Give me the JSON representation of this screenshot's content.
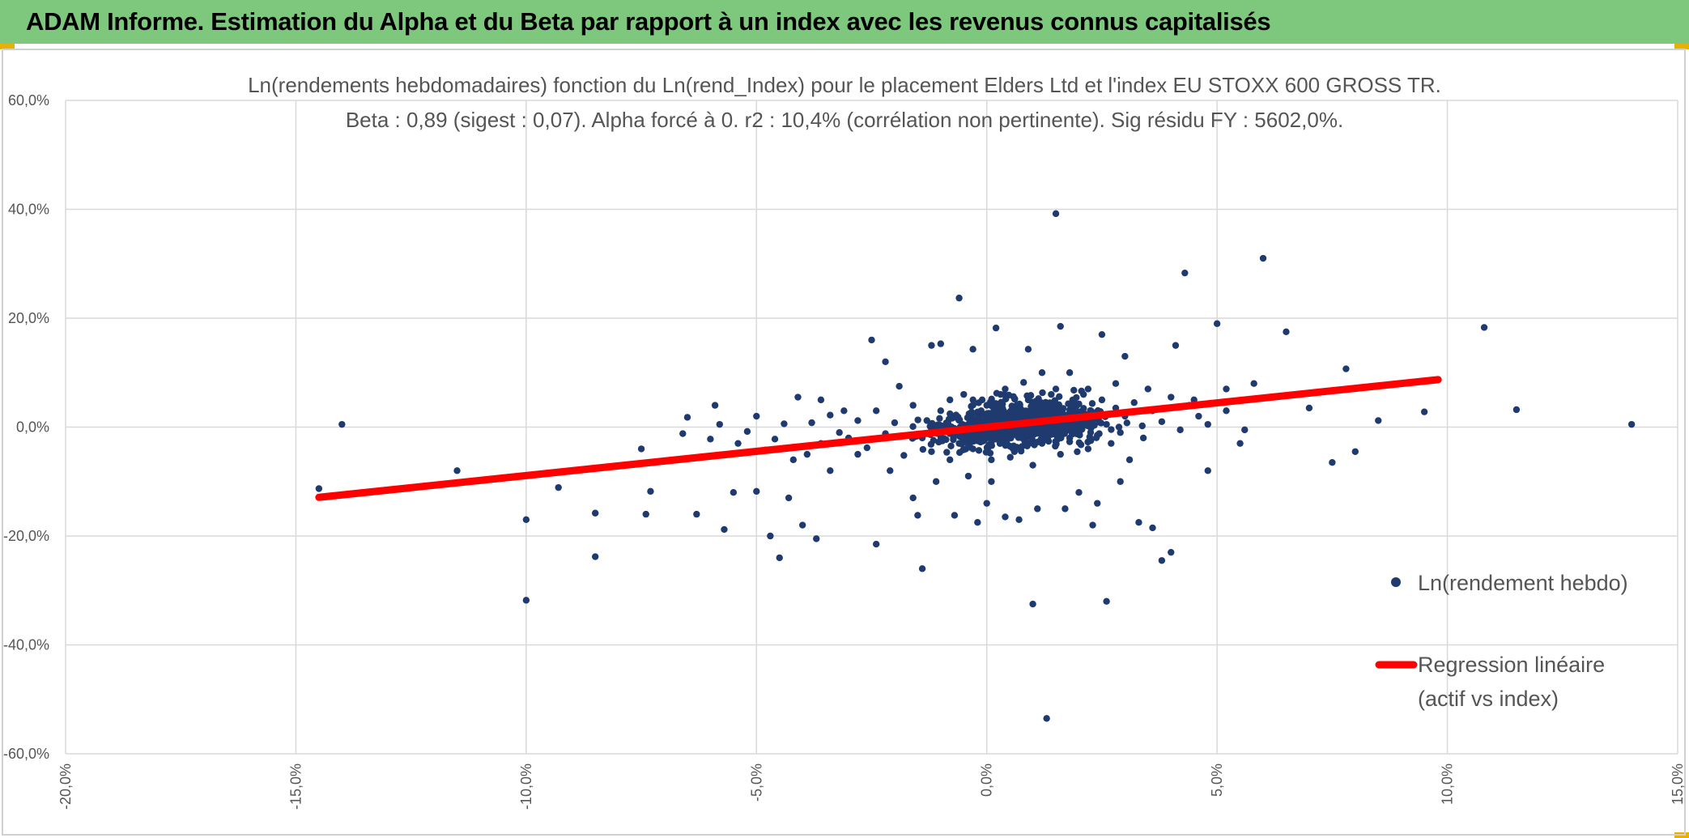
{
  "header": {
    "title": "ADAM Informe. Estimation du Alpha et du Beta par rapport à un index avec les revenus connus capitalisés"
  },
  "colors": {
    "banner": "#7dc87d",
    "points": "#1f3a6e",
    "regression": "#ff0000",
    "grid": "#d9d9d9"
  },
  "chart_data": {
    "type": "scatter",
    "title": "Ln(rendements hebdomadaires) fonction du Ln(rend_Index) pour le placement Elders Ltd et l'index EU STOXX 600 GROSS TR.",
    "subtitle": "Beta : 0,89 (sigest : 0,07). Alpha forcé à 0. r2 : 10,4% (corrélation non pertinente). Sig résidu FY : 5602,0%.",
    "xlim": [
      -0.2,
      0.15
    ],
    "ylim": [
      -0.6,
      0.6
    ],
    "x_ticks": [
      -0.2,
      -0.15,
      -0.1,
      -0.05,
      0.0,
      0.05,
      0.1,
      0.15
    ],
    "x_tick_labels": [
      "-20,0%",
      "-15,0%",
      "-10,0%",
      "-5,0%",
      "0,0%",
      "5,0%",
      "10,0%",
      "15,0%"
    ],
    "y_ticks": [
      0.6,
      0.4,
      0.2,
      0.0,
      -0.2,
      -0.4,
      -0.6
    ],
    "y_tick_labels": [
      "60,0%",
      "40,0%",
      "20,0%",
      "0,0%",
      "-20,0%",
      "-40,0%",
      "-60,0%"
    ],
    "legend_position": "right",
    "series": [
      {
        "name": "Ln(rendement hebdo)",
        "kind": "scatter",
        "points": [
          [
            -0.145,
            -0.113
          ],
          [
            -0.14,
            0.005
          ],
          [
            -0.115,
            -0.08
          ],
          [
            -0.1,
            -0.17
          ],
          [
            -0.1,
            -0.318
          ],
          [
            -0.093,
            -0.111
          ],
          [
            -0.085,
            -0.158
          ],
          [
            -0.085,
            -0.238
          ],
          [
            -0.075,
            -0.04
          ],
          [
            -0.074,
            -0.16
          ],
          [
            -0.073,
            -0.118
          ],
          [
            -0.065,
            0.018
          ],
          [
            -0.063,
            -0.16
          ],
          [
            -0.059,
            0.04
          ],
          [
            -0.057,
            -0.188
          ],
          [
            -0.055,
            -0.12
          ],
          [
            -0.05,
            0.02
          ],
          [
            -0.05,
            -0.118
          ],
          [
            -0.047,
            -0.2
          ],
          [
            -0.045,
            -0.24
          ],
          [
            -0.043,
            -0.13
          ],
          [
            -0.041,
            0.055
          ],
          [
            -0.04,
            -0.18
          ],
          [
            -0.039,
            -0.05
          ],
          [
            -0.037,
            -0.205
          ],
          [
            -0.036,
            0.05
          ],
          [
            -0.034,
            -0.08
          ],
          [
            -0.032,
            -0.01
          ],
          [
            -0.031,
            0.03
          ],
          [
            -0.028,
            -0.05
          ],
          [
            -0.025,
            0.16
          ],
          [
            -0.024,
            -0.215
          ],
          [
            -0.022,
            0.12
          ],
          [
            -0.021,
            -0.08
          ],
          [
            -0.019,
            0.075
          ],
          [
            -0.016,
            -0.13
          ],
          [
            -0.015,
            -0.162
          ],
          [
            -0.014,
            -0.26
          ],
          [
            -0.012,
            0.15
          ],
          [
            -0.011,
            -0.1
          ],
          [
            -0.01,
            0.153
          ],
          [
            -0.008,
            0.05
          ],
          [
            -0.007,
            -0.162
          ],
          [
            -0.006,
            0.237
          ],
          [
            -0.004,
            -0.09
          ],
          [
            -0.003,
            0.143
          ],
          [
            -0.002,
            -0.175
          ],
          [
            -0.001,
            0.05
          ],
          [
            0.0,
            -0.14
          ],
          [
            0.001,
            -0.1
          ],
          [
            0.002,
            0.182
          ],
          [
            0.003,
            0.06
          ],
          [
            0.004,
            -0.165
          ],
          [
            0.005,
            -0.035
          ],
          [
            0.007,
            -0.17
          ],
          [
            0.008,
            0.082
          ],
          [
            0.009,
            0.143
          ],
          [
            0.01,
            -0.325
          ],
          [
            0.011,
            -0.15
          ],
          [
            0.012,
            0.1
          ],
          [
            0.013,
            -0.535
          ],
          [
            0.014,
            0.06
          ],
          [
            0.015,
            0.392
          ],
          [
            0.016,
            0.185
          ],
          [
            0.017,
            -0.15
          ],
          [
            0.018,
            0.1
          ],
          [
            0.02,
            -0.12
          ],
          [
            0.022,
            0.07
          ],
          [
            0.023,
            -0.18
          ],
          [
            0.024,
            -0.14
          ],
          [
            0.025,
            0.17
          ],
          [
            0.026,
            -0.32
          ],
          [
            0.028,
            0.08
          ],
          [
            0.029,
            -0.1
          ],
          [
            0.03,
            0.13
          ],
          [
            0.031,
            -0.06
          ],
          [
            0.033,
            -0.175
          ],
          [
            0.035,
            0.07
          ],
          [
            0.036,
            -0.185
          ],
          [
            0.038,
            -0.245
          ],
          [
            0.04,
            -0.23
          ],
          [
            0.041,
            0.15
          ],
          [
            0.043,
            0.283
          ],
          [
            0.045,
            0.05
          ],
          [
            0.048,
            -0.08
          ],
          [
            0.05,
            0.19
          ],
          [
            0.052,
            0.07
          ],
          [
            0.055,
            -0.03
          ],
          [
            0.058,
            0.08
          ],
          [
            0.06,
            0.31
          ],
          [
            0.065,
            0.175
          ],
          [
            0.07,
            0.035
          ],
          [
            0.075,
            -0.065
          ],
          [
            0.078,
            0.107
          ],
          [
            0.08,
            -0.045
          ],
          [
            0.085,
            0.012
          ],
          [
            0.095,
            0.028
          ],
          [
            0.108,
            0.183
          ],
          [
            0.115,
            0.032
          ],
          [
            0.14,
            0.005
          ],
          [
            -0.066,
            -0.012
          ],
          [
            -0.06,
            -0.022
          ],
          [
            -0.058,
            0.005
          ],
          [
            -0.054,
            -0.03
          ],
          [
            -0.052,
            -0.008
          ],
          [
            -0.048,
            -0.042
          ],
          [
            -0.046,
            -0.022
          ],
          [
            -0.044,
            0.006
          ],
          [
            -0.042,
            -0.06
          ],
          [
            -0.038,
            0.008
          ],
          [
            -0.036,
            -0.03
          ],
          [
            -0.034,
            0.022
          ],
          [
            -0.03,
            -0.02
          ],
          [
            -0.028,
            0.012
          ],
          [
            -0.026,
            -0.038
          ],
          [
            -0.024,
            0.03
          ],
          [
            -0.022,
            -0.012
          ],
          [
            -0.02,
            0.008
          ],
          [
            -0.018,
            -0.052
          ],
          [
            -0.016,
            0.04
          ],
          [
            -0.014,
            -0.02
          ],
          [
            -0.013,
            0.012
          ],
          [
            -0.012,
            -0.045
          ],
          [
            -0.01,
            0.03
          ],
          [
            -0.009,
            -0.008
          ],
          [
            -0.008,
            -0.06
          ],
          [
            -0.007,
            0.018
          ],
          [
            -0.006,
            -0.03
          ],
          [
            -0.005,
            0.06
          ],
          [
            -0.004,
            0.002
          ],
          [
            -0.003,
            -0.04
          ],
          [
            -0.002,
            0.025
          ],
          [
            -0.001,
            -0.015
          ],
          [
            0.0,
            0.04
          ],
          [
            0.001,
            -0.06
          ],
          [
            0.002,
            0.01
          ],
          [
            0.003,
            -0.025
          ],
          [
            0.004,
            0.07
          ],
          [
            0.005,
            0.0
          ],
          [
            0.006,
            -0.045
          ],
          [
            0.007,
            0.03
          ],
          [
            0.008,
            -0.012
          ],
          [
            0.009,
            0.05
          ],
          [
            0.01,
            -0.07
          ],
          [
            0.011,
            0.015
          ],
          [
            0.012,
            -0.03
          ],
          [
            0.013,
            0.04
          ],
          [
            0.014,
            -0.005
          ],
          [
            0.015,
            0.07
          ],
          [
            0.016,
            -0.05
          ],
          [
            0.017,
            0.02
          ],
          [
            0.018,
            -0.02
          ],
          [
            0.019,
            0.045
          ],
          [
            0.02,
            -0.008
          ],
          [
            0.021,
            0.06
          ],
          [
            0.022,
            -0.04
          ],
          [
            0.023,
            0.025
          ],
          [
            0.024,
            -0.015
          ],
          [
            0.025,
            0.05
          ],
          [
            0.026,
            0.005
          ],
          [
            0.027,
            -0.03
          ],
          [
            0.028,
            0.035
          ],
          [
            0.029,
            -0.01
          ],
          [
            0.03,
            0.02
          ],
          [
            0.032,
            0.045
          ],
          [
            0.034,
            -0.02
          ],
          [
            0.036,
            0.03
          ],
          [
            0.038,
            0.01
          ],
          [
            0.04,
            0.055
          ],
          [
            0.042,
            -0.005
          ],
          [
            0.044,
            0.04
          ],
          [
            0.046,
            0.02
          ],
          [
            0.048,
            0.005
          ],
          [
            0.052,
            0.03
          ],
          [
            0.056,
            -0.005
          ]
        ]
      },
      {
        "name": "Regression linéaire (actif vs index)",
        "legend_lines": [
          "Regression linéaire",
          "(actif vs index)"
        ],
        "kind": "line",
        "beta": 0.89,
        "x_range": [
          -0.145,
          0.098
        ]
      }
    ]
  }
}
